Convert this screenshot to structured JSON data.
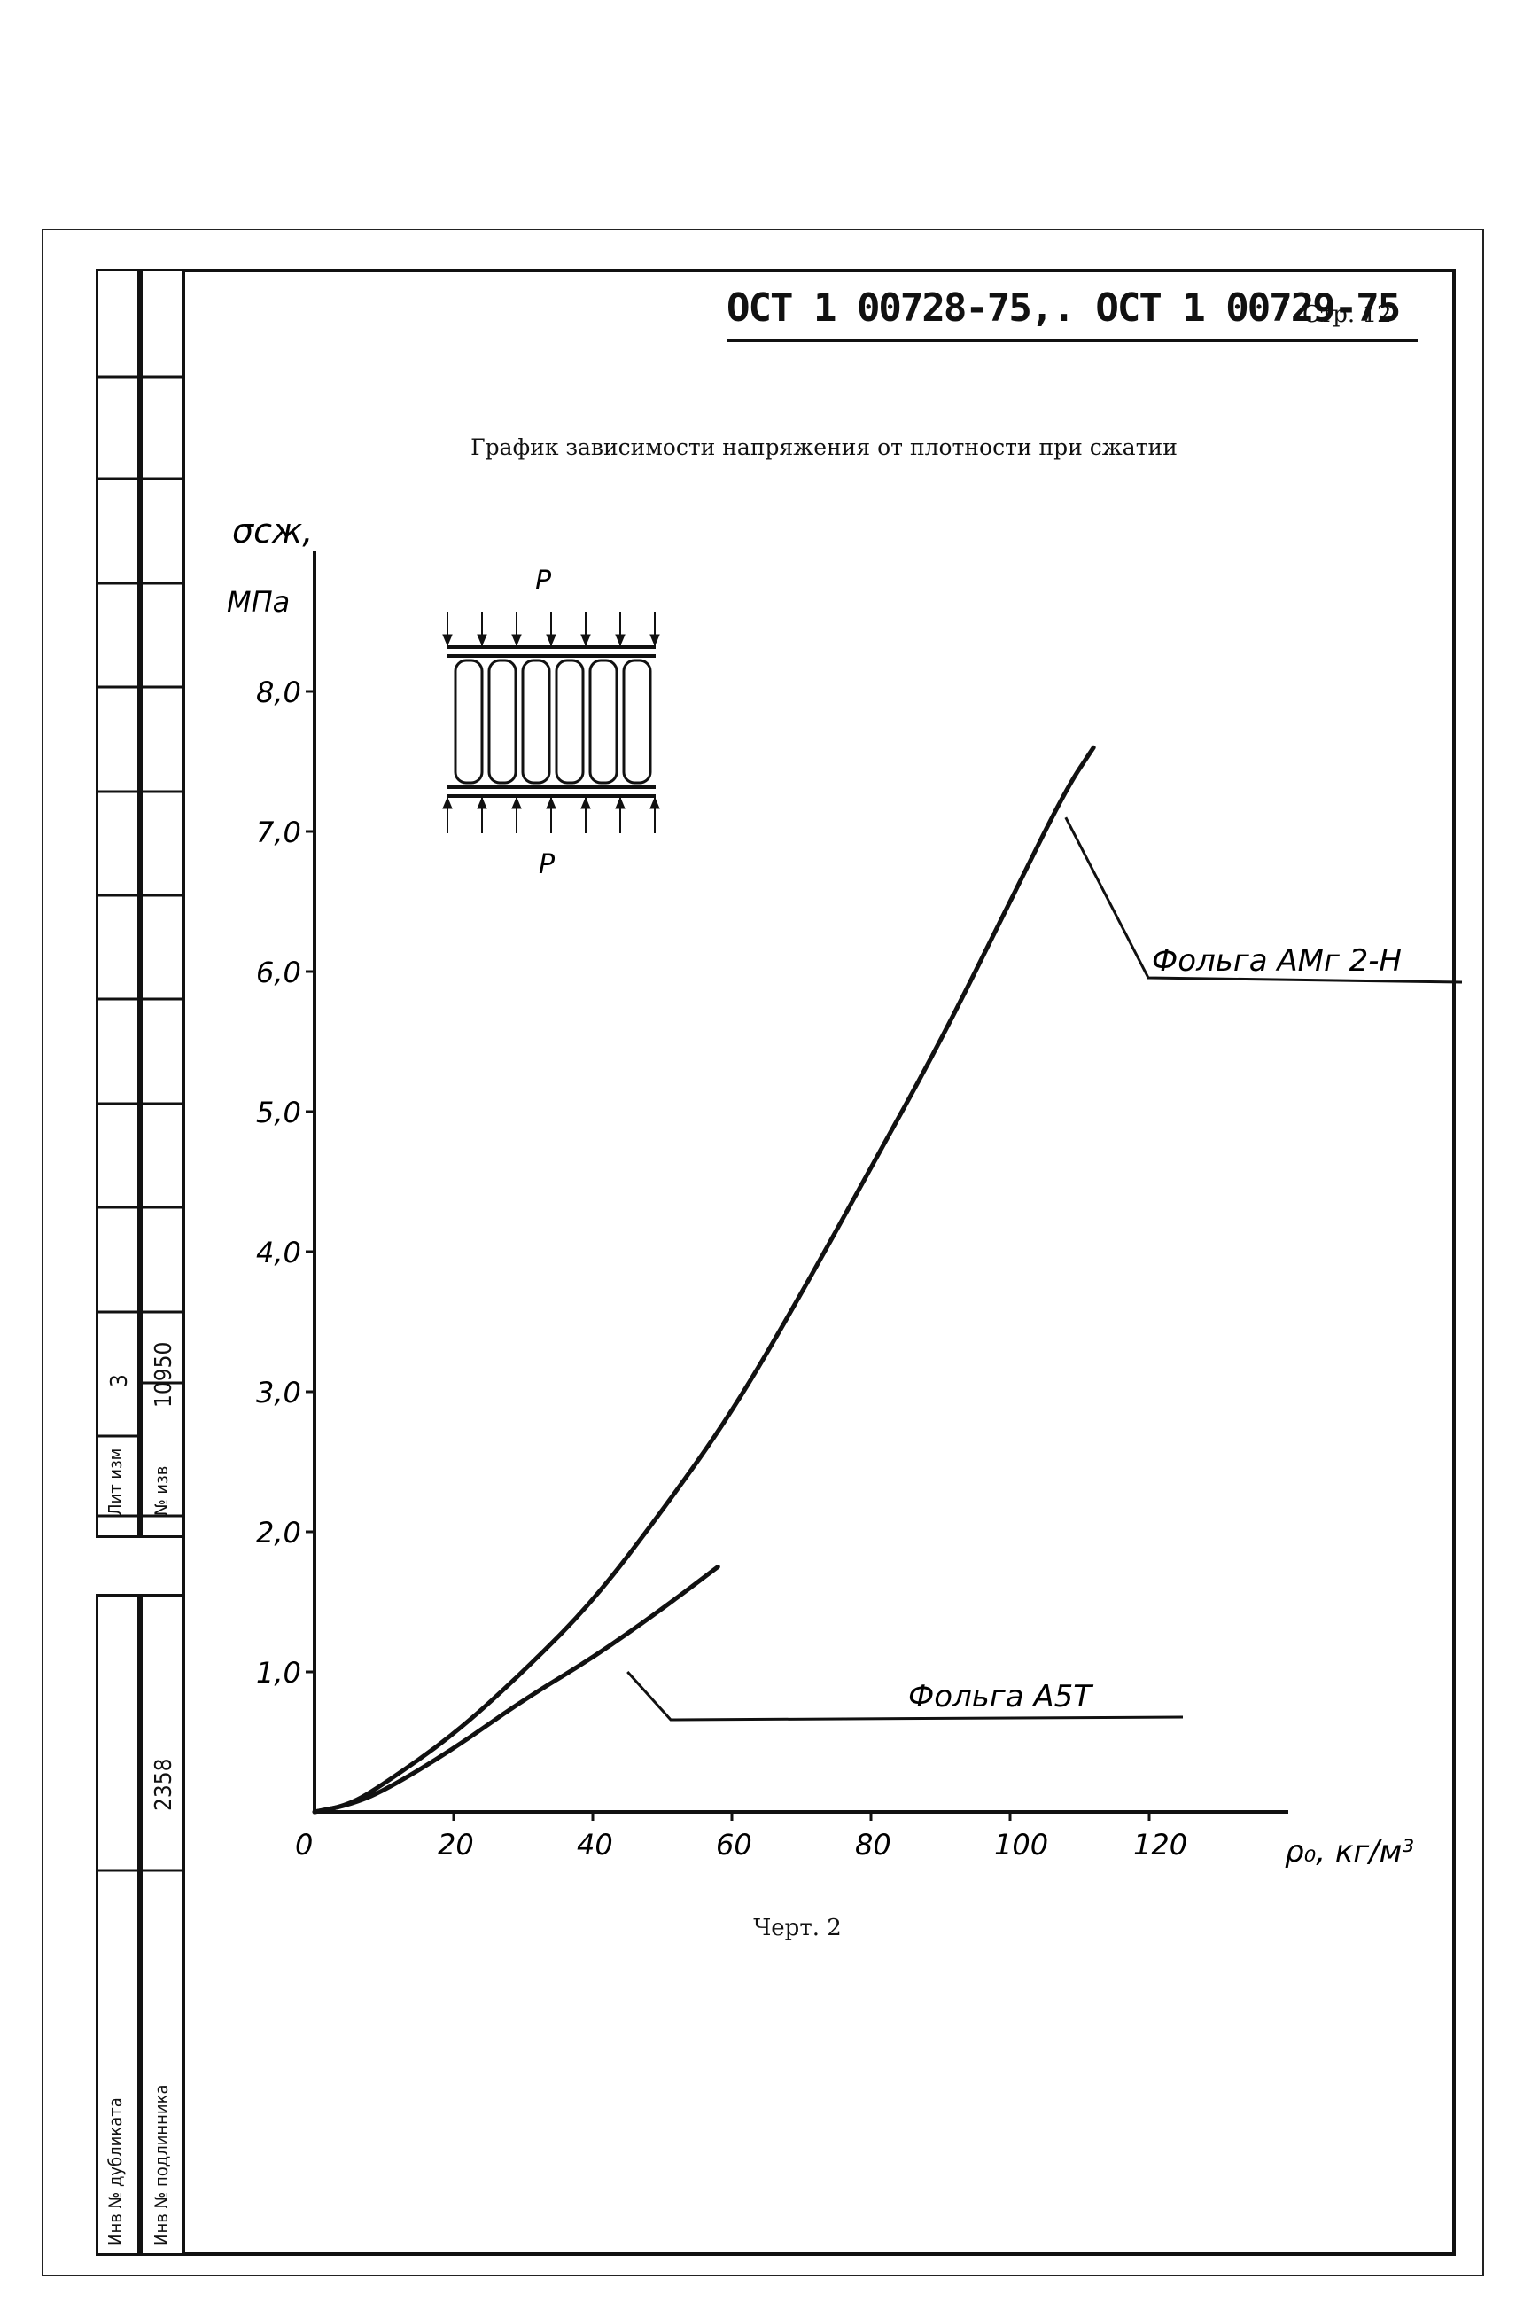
{
  "document": {
    "code": "ОСТ 1 00728-75,. ОСТ 1 00729-75",
    "page_label": "Стр. 12",
    "title": "График зависимости напряжения от плотности при сжатии",
    "caption": "Черт. 2"
  },
  "stamp": {
    "lit_izm_label": "Лит изм",
    "lit_izm_value": "3",
    "no_izv_label": "№ изв",
    "no_izv_value": "10950",
    "inv_dub_label": "Инв № дубликата",
    "inv_dub_value": "",
    "inv_orig_label": "Инв № подлинника",
    "inv_orig_value": "2358"
  },
  "diagram": {
    "load_top": "P",
    "load_bottom": "P"
  },
  "chart_data": {
    "type": "line",
    "title": "График зависимости напряжения от плотности при сжатии",
    "xlabel": "ρ₀, кг/м³",
    "ylabel_symbol": "σсж,",
    "ylabel_unit": "МПа",
    "xlim": [
      0,
      140
    ],
    "ylim": [
      0,
      9.0
    ],
    "x_ticks": [
      {
        "value": 0,
        "label": "0"
      },
      {
        "value": 20,
        "label": "20"
      },
      {
        "value": 40,
        "label": "40"
      },
      {
        "value": 60,
        "label": "60"
      },
      {
        "value": 80,
        "label": "80"
      },
      {
        "value": 100,
        "label": "100"
      },
      {
        "value": 120,
        "label": "120"
      }
    ],
    "y_ticks": [
      {
        "value": 1.0,
        "label": "1,0"
      },
      {
        "value": 2.0,
        "label": "2,0"
      },
      {
        "value": 3.0,
        "label": "3,0"
      },
      {
        "value": 4.0,
        "label": "4,0"
      },
      {
        "value": 5.0,
        "label": "5,0"
      },
      {
        "value": 6.0,
        "label": "6,0"
      },
      {
        "value": 7.0,
        "label": "7,0"
      },
      {
        "value": 8.0,
        "label": "8,0"
      }
    ],
    "grid": false,
    "series": [
      {
        "name": "Фольга АМг 2-Н",
        "x": [
          0,
          5,
          10,
          20,
          30,
          40,
          50,
          60,
          70,
          80,
          90,
          100,
          108,
          112
        ],
        "y": [
          0,
          0.05,
          0.2,
          0.55,
          1.0,
          1.5,
          2.15,
          2.85,
          3.7,
          4.6,
          5.5,
          6.5,
          7.3,
          7.6
        ]
      },
      {
        "name": "Фольга А5Т",
        "x": [
          0,
          5,
          10,
          20,
          30,
          40,
          50,
          58
        ],
        "y": [
          0,
          0.05,
          0.15,
          0.45,
          0.8,
          1.1,
          1.45,
          1.75
        ]
      }
    ],
    "annotations": [
      {
        "series": "Фольга АМг 2-Н",
        "text": "Фольга АМг 2-Н"
      },
      {
        "series": "Фольга А5Т",
        "text": "Фольга А5Т"
      }
    ]
  }
}
